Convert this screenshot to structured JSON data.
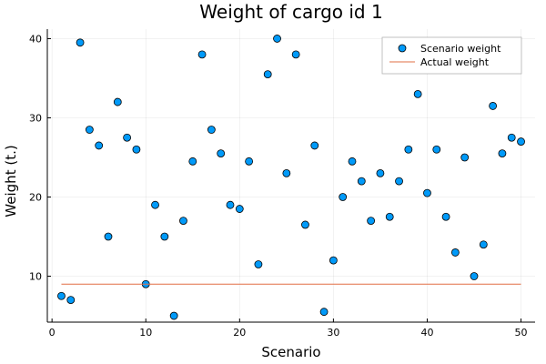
{
  "chart_data": {
    "type": "scatter",
    "title": "Weight of cargo id 1",
    "xlabel": "Scenario",
    "ylabel": "Weight (t.)",
    "xlim": [
      -0.5,
      51.5
    ],
    "ylim": [
      4.2,
      41.2
    ],
    "xticks": [
      0,
      10,
      20,
      30,
      40,
      50
    ],
    "yticks": [
      10,
      20,
      30,
      40
    ],
    "grid": true,
    "legend_position": "top-right",
    "series": [
      {
        "name": "Scenario weight",
        "kind": "scatter",
        "color": "#009af9",
        "x": [
          1,
          2,
          3,
          4,
          5,
          6,
          7,
          8,
          9,
          10,
          11,
          12,
          13,
          14,
          15,
          16,
          17,
          18,
          19,
          20,
          21,
          22,
          23,
          24,
          25,
          26,
          27,
          28,
          29,
          30,
          31,
          32,
          33,
          34,
          35,
          36,
          37,
          38,
          39,
          40,
          41,
          42,
          43,
          44,
          45,
          46,
          47,
          48,
          49,
          50
        ],
        "y": [
          7.5,
          7,
          39.5,
          28.5,
          26.5,
          15,
          32,
          27.5,
          26,
          9,
          19,
          15,
          5,
          17,
          24.5,
          38,
          28.5,
          25.5,
          19,
          18.5,
          24.5,
          11.5,
          35.5,
          40,
          23,
          38,
          16.5,
          26.5,
          5.5,
          12,
          20,
          24.5,
          22,
          17,
          23,
          17.5,
          22,
          26,
          33,
          20.5,
          26,
          17.5,
          13,
          25,
          10,
          14,
          31.5,
          25.5,
          27.5,
          27
        ]
      },
      {
        "name": "Actual weight",
        "kind": "line",
        "color": "#e26f46",
        "x": [
          1,
          50
        ],
        "y": [
          9,
          9
        ]
      }
    ]
  }
}
